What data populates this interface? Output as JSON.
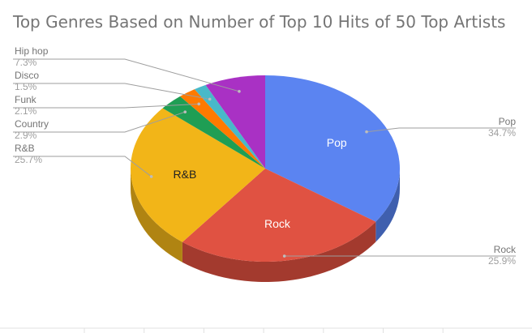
{
  "chart_data": {
    "type": "pie",
    "title": "Top Genres Based on Number of Top 10 Hits of 50 Top Artists",
    "style": "3d",
    "slices": [
      {
        "label": "Pop",
        "value": 34.7,
        "value_label": "34.7%",
        "color": "#5b84f1",
        "side_color": "#3f5fae",
        "legend": "right",
        "inner_label": "Pop",
        "inner_color": "#ffffff"
      },
      {
        "label": "Rock",
        "value": 25.9,
        "value_label": "25.9%",
        "color": "#e05242",
        "side_color": "#a33a2e",
        "legend": "right",
        "inner_label": "Rock",
        "inner_color": "#ffffff"
      },
      {
        "label": "R&B",
        "value": 25.7,
        "value_label": "25.7%",
        "color": "#f2b518",
        "side_color": "#b08412",
        "legend": "left",
        "inner_label": "R&B",
        "inner_color": "#222222"
      },
      {
        "label": "Country",
        "value": 2.9,
        "value_label": "2.9%",
        "color": "#1f9e54",
        "side_color": "#15713b",
        "legend": "left"
      },
      {
        "label": "Funk",
        "value": 2.1,
        "value_label": "2.1%",
        "color": "#ff7a00",
        "side_color": "#b65700",
        "legend": "left"
      },
      {
        "label": "Disco",
        "value": 1.5,
        "value_label": "1.5%",
        "color": "#48b9c9",
        "side_color": "#33848f",
        "legend": "left"
      },
      {
        "label": "Hip hop",
        "value": 7.3,
        "value_label": "7.3%",
        "color": "#a931c4",
        "side_color": "#78228b",
        "legend": "left"
      }
    ]
  }
}
